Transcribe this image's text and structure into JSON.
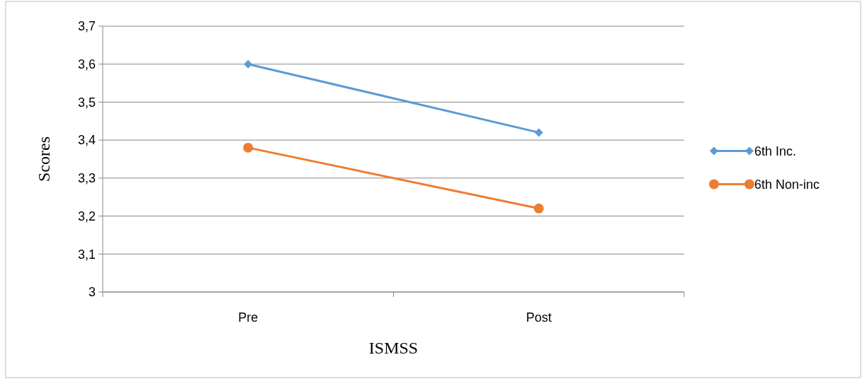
{
  "chart_data": {
    "type": "line",
    "xlabel": "ISMSS",
    "ylabel": "Scores",
    "categories": [
      "Pre",
      "Post"
    ],
    "series": [
      {
        "name": "6th Inc.",
        "color": "#5b9bd5",
        "values": [
          3.6,
          3.42
        ],
        "marker": "diamond"
      },
      {
        "name": "6th Non-inc",
        "color": "#ed7d31",
        "values": [
          3.38,
          3.22
        ],
        "marker": "circle"
      }
    ],
    "ylim": [
      3,
      3.7
    ],
    "yticks": [
      3,
      {
        "value": 3.1,
        "label": "3,1"
      },
      {
        "value": 3.2,
        "label": "3,2"
      },
      {
        "value": 3.3,
        "label": "3,3"
      },
      {
        "value": 3.4,
        "label": "3,4"
      },
      {
        "value": 3.5,
        "label": "3,5"
      },
      {
        "value": 3.6,
        "label": "3,6"
      },
      {
        "value": 3.7,
        "label": "3,7"
      }
    ],
    "grid": "y",
    "legend": "right",
    "line_style": "solid"
  }
}
